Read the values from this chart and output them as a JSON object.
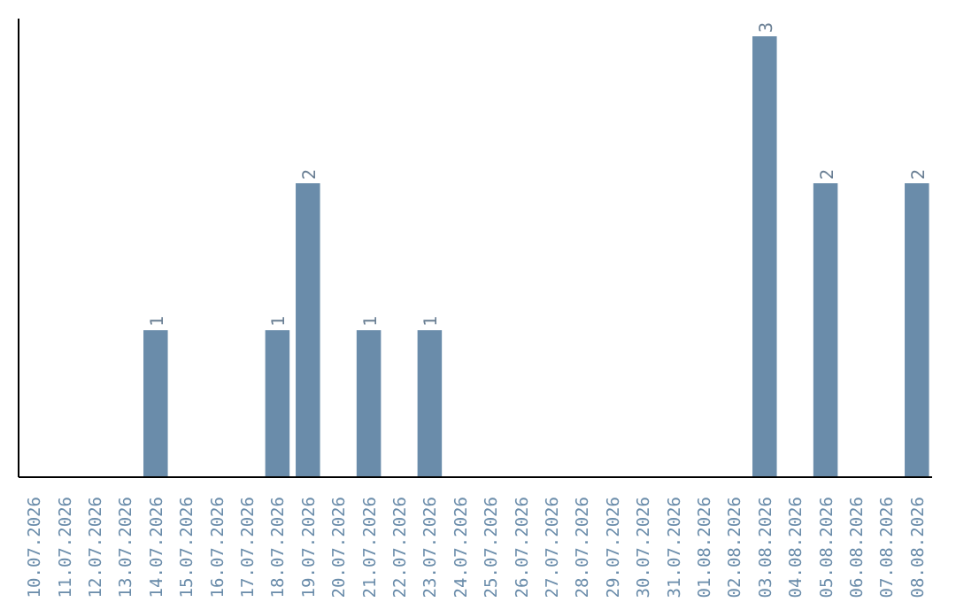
{
  "chart_data": {
    "type": "bar",
    "categories": [
      "10.07.2026",
      "11.07.2026",
      "12.07.2026",
      "13.07.2026",
      "14.07.2026",
      "15.07.2026",
      "16.07.2026",
      "17.07.2026",
      "18.07.2026",
      "19.07.2026",
      "20.07.2026",
      "21.07.2026",
      "22.07.2026",
      "23.07.2026",
      "24.07.2026",
      "25.07.2026",
      "26.07.2026",
      "27.07.2026",
      "28.07.2026",
      "29.07.2026",
      "30.07.2026",
      "31.07.2026",
      "01.08.2026",
      "02.08.2026",
      "03.08.2026",
      "04.08.2026",
      "05.08.2026",
      "06.08.2026",
      "07.08.2026",
      "08.08.2026"
    ],
    "values": [
      0,
      0,
      0,
      0,
      1,
      0,
      0,
      0,
      1,
      2,
      0,
      1,
      0,
      1,
      0,
      0,
      0,
      0,
      0,
      0,
      0,
      0,
      0,
      0,
      3,
      0,
      2,
      0,
      0,
      2
    ],
    "value_labels": [
      null,
      null,
      null,
      null,
      "1",
      null,
      null,
      null,
      "1",
      "2",
      null,
      "1",
      null,
      "1",
      null,
      null,
      null,
      null,
      null,
      null,
      null,
      null,
      null,
      null,
      "3",
      null,
      "2",
      null,
      null,
      "2"
    ],
    "color": "#6a8caa",
    "grid": false
  }
}
